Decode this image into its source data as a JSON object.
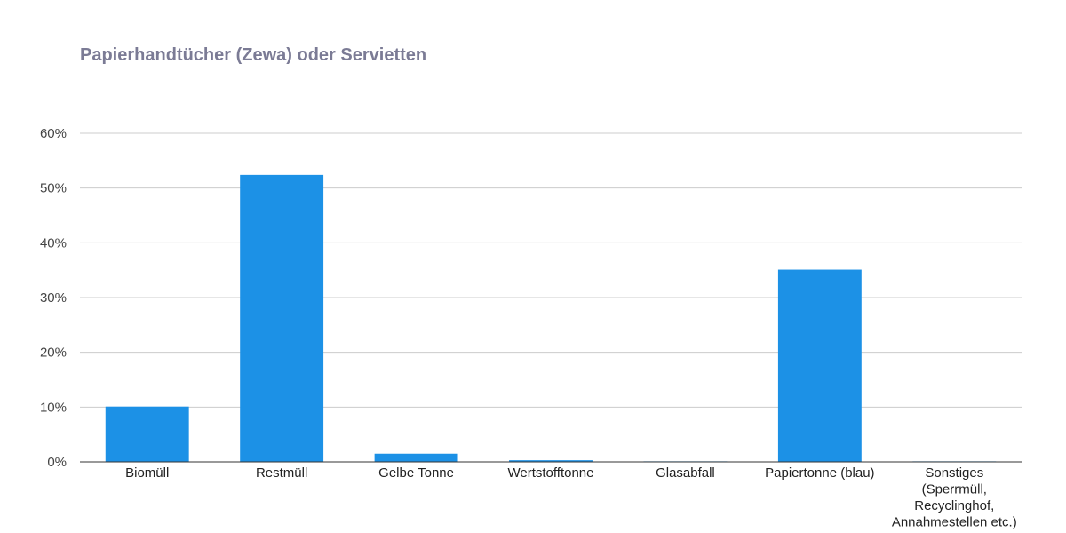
{
  "chart_data": {
    "type": "bar",
    "title": "Papierhandtücher (Zewa) oder Servietten",
    "xlabel": "",
    "ylabel": "",
    "categories": [
      "Biomüll",
      "Restmüll",
      "Gelbe Tonne",
      "Wertstofftonne",
      "Glasabfall",
      "Papiertonne (blau)",
      "Sonstiges (Sperrmüll, Recyclinghof, Annahmestellen etc.)"
    ],
    "category_label_lines": [
      [
        "Biomüll"
      ],
      [
        "Restmüll"
      ],
      [
        "Gelbe Tonne"
      ],
      [
        "Wertstofftonne"
      ],
      [
        "Glasabfall"
      ],
      [
        "Papiertonne (blau)"
      ],
      [
        "Sonstiges",
        "(Sperrmüll,",
        "Recyclinghof,",
        "Annahmestellen etc.)"
      ]
    ],
    "values": [
      10.1,
      52.4,
      1.5,
      0.3,
      0.1,
      35.1,
      0.1
    ],
    "ylim": [
      0,
      60
    ],
    "yticks": [
      0,
      10,
      20,
      30,
      40,
      50,
      60
    ],
    "ytick_labels": [
      "0%",
      "10%",
      "20%",
      "30%",
      "40%",
      "50%",
      "60%"
    ],
    "grid": true,
    "legend": "none",
    "bar_color": "#1c91e6"
  }
}
